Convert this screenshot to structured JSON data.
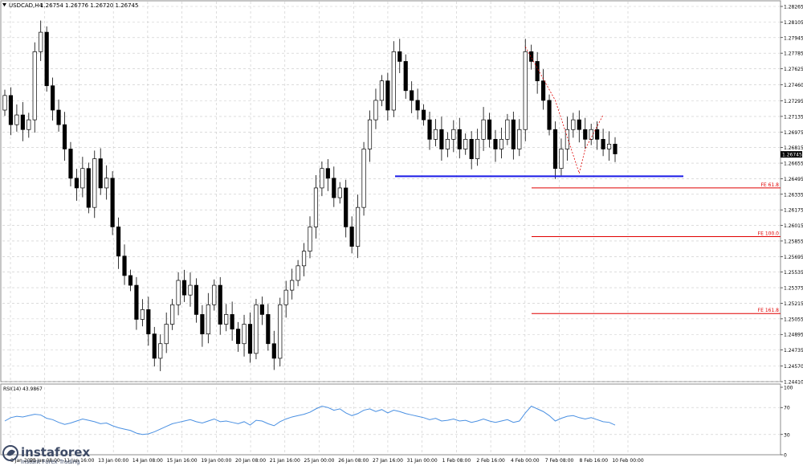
{
  "header": {
    "symbol": "USDCAD,H4",
    "ohlc": "1.26754 1.26776 1.26720 1.26745"
  },
  "watermark": {
    "brand": "instaforex",
    "tagline": "Instant Forex Trading"
  },
  "colors": {
    "grid": "#c8c8c8",
    "candle": "#000000",
    "support_line": "#1a1ae6",
    "fib_lines": "#e00000",
    "rsi_line": "#4a90e2"
  },
  "chart_data": {
    "type": "candlestick",
    "symbol": "USDCAD",
    "timeframe": "H4",
    "price_axis_ticks": [
      "1.28265",
      "1.28105",
      "1.27945",
      "1.27785",
      "1.27625",
      "1.27460",
      "1.27295",
      "1.27135",
      "1.26975",
      "1.26815",
      "1.26655",
      "1.26495",
      "1.26335",
      "1.26175",
      "1.26015",
      "1.25855",
      "1.25695",
      "1.25535",
      "1.25375",
      "1.25215",
      "1.25055",
      "1.24895",
      "1.24735",
      "1.24570",
      "1.24410"
    ],
    "price_range": [
      1.2441,
      1.28265
    ],
    "current_price": "1.26745",
    "time_axis_labels": [
      "8 Jan 2021",
      "10 Jan 08:00",
      "11 Jan 16:00",
      "13 Jan 00:00",
      "14 Jan 08:00",
      "15 Jan 16:00",
      "19 Jan 00:00",
      "20 Jan 08:00",
      "21 Jan 16:00",
      "25 Jan 00:00",
      "26 Jan 08:00",
      "27 Jan 16:00",
      "31 Jan 00:00",
      "1 Feb 08:00",
      "2 Feb 16:00",
      "4 Feb 00:00",
      "7 Feb 08:00",
      "8 Feb 16:00",
      "10 Feb 00:00"
    ],
    "closes": [
      1.2735,
      1.2705,
      1.2715,
      1.27,
      1.271,
      1.278,
      1.28,
      1.2745,
      1.272,
      1.2705,
      1.268,
      1.265,
      1.264,
      1.266,
      1.262,
      1.267,
      1.264,
      1.265,
      1.26,
      1.257,
      1.255,
      1.254,
      1.2505,
      1.2515,
      1.249,
      1.2465,
      1.248,
      1.25,
      1.252,
      1.2545,
      1.253,
      1.254,
      1.251,
      1.249,
      1.252,
      1.254,
      1.25,
      1.251,
      1.2495,
      1.248,
      1.25,
      1.247,
      1.252,
      1.251,
      1.248,
      1.2465,
      1.252,
      1.2535,
      1.2545,
      1.256,
      1.2575,
      1.26,
      1.264,
      1.266,
      1.265,
      1.263,
      1.264,
      1.26,
      1.258,
      1.262,
      1.268,
      1.271,
      1.273,
      1.275,
      1.272,
      1.278,
      1.277,
      1.274,
      1.273,
      1.272,
      1.271,
      1.269,
      1.27,
      1.268,
      1.269,
      1.27,
      1.268,
      1.269,
      1.267,
      1.269,
      1.271,
      1.269,
      1.268,
      1.269,
      1.271,
      1.268,
      1.27,
      1.278,
      1.277,
      1.275,
      1.273,
      1.27,
      1.266,
      1.268,
      1.27,
      1.271,
      1.27,
      1.269,
      1.27,
      1.269,
      1.268,
      1.2685,
      1.2675
    ],
    "support_level": 1.2652,
    "fib_levels": [
      {
        "label": "FE 61.8",
        "value": 1.264
      },
      {
        "label": "FE 100.0",
        "value": 1.259
      },
      {
        "label": "FE 161.8",
        "value": 1.2511
      }
    ],
    "indicator": {
      "name": "RSI(14)",
      "value_label": "RSI(14) 43.9867",
      "ticks": [
        "100",
        "70",
        "30",
        "0"
      ],
      "range": [
        0,
        100
      ],
      "values": [
        50,
        55,
        57,
        56,
        58,
        60,
        59,
        54,
        52,
        48,
        45,
        47,
        50,
        53,
        51,
        49,
        46,
        47,
        43,
        40,
        38,
        36,
        32,
        30,
        31,
        34,
        38,
        42,
        46,
        48,
        50,
        52,
        49,
        47,
        50,
        53,
        49,
        50,
        48,
        46,
        49,
        44,
        51,
        50,
        46,
        43,
        49,
        53,
        56,
        58,
        60,
        63,
        68,
        72,
        70,
        66,
        68,
        62,
        58,
        61,
        66,
        68,
        64,
        67,
        62,
        66,
        64,
        61,
        59,
        57,
        55,
        52,
        54,
        50,
        51,
        53,
        50,
        51,
        48,
        50,
        53,
        50,
        48,
        50,
        52,
        48,
        50,
        62,
        72,
        68,
        64,
        58,
        50,
        54,
        57,
        58,
        55,
        53,
        55,
        52,
        49,
        48,
        44
      ]
    }
  }
}
